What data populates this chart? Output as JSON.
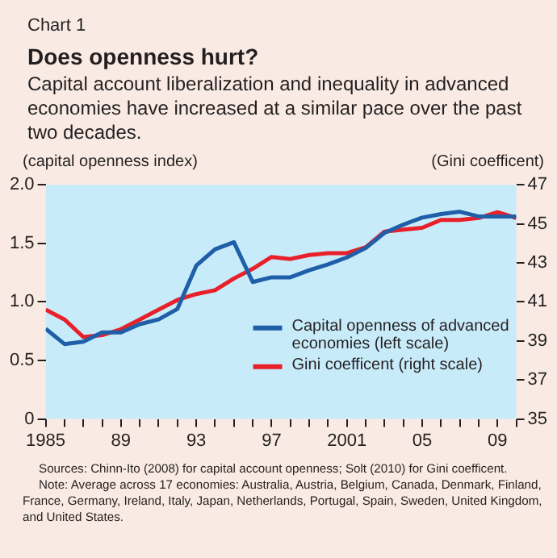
{
  "chart_data": {
    "type": "line",
    "subtitle": "Chart 1",
    "title": "Does openness hurt?",
    "annotations": [
      "Capital account liberalization and inequality in advanced economies have increased at a similar pace over the past two decades.",
      "Sources: Chinn-Ito (2008) for capital account openness; Solt (2010) for Gini coefficent.",
      "Note: Average across 17 economies: Australia, Austria, Belgium, Canada, Denmark, Finland, France, Germany, Ireland, Italy, Japan, Netherlands, Portugal, Spain, Sweden, United Kingdom, and United States."
    ],
    "ylabel": "(capital openness index)",
    "y2label": "(Gini coefficent)",
    "x": [
      1985,
      1986,
      1987,
      1988,
      1989,
      1990,
      1991,
      1992,
      1993,
      1994,
      1995,
      1996,
      1997,
      1998,
      1999,
      2000,
      2001,
      2002,
      2003,
      2004,
      2005,
      2006,
      2007,
      2008,
      2009,
      2010
    ],
    "series": [
      {
        "name": "Capital openness of advanced economies (left scale)",
        "color": "#1f5fa8",
        "values": [
          0.77,
          0.64,
          0.66,
          0.74,
          0.74,
          0.81,
          0.85,
          0.94,
          1.31,
          1.45,
          1.51,
          1.17,
          1.21,
          1.21,
          1.27,
          1.32,
          1.38,
          1.46,
          1.59,
          1.66,
          1.72,
          1.75,
          1.77,
          1.73,
          1.73,
          1.73
        ]
      },
      {
        "name": "Gini coefficent (right scale)",
        "color": "#e8202a",
        "axis": "y2",
        "values": [
          40.6,
          40.1,
          39.2,
          39.3,
          39.6,
          40.1,
          40.6,
          41.1,
          41.4,
          41.6,
          42.2,
          42.7,
          43.3,
          43.2,
          43.4,
          43.5,
          43.5,
          43.8,
          44.6,
          44.7,
          44.8,
          45.2,
          45.2,
          45.3,
          45.6,
          45.3
        ]
      }
    ],
    "xlim": [
      1985,
      2010
    ],
    "xticks": [
      1985,
      {
        "value": 1986,
        "label": null
      },
      {
        "value": 1987,
        "label": null
      },
      {
        "value": 1988,
        "label": null
      },
      {
        "value": 1989,
        "label": "89"
      },
      {
        "value": 1990,
        "label": null
      },
      {
        "value": 1991,
        "label": null
      },
      {
        "value": 1992,
        "label": null
      },
      {
        "value": 1993,
        "label": "93"
      },
      {
        "value": 1994,
        "label": null
      },
      {
        "value": 1995,
        "label": null
      },
      {
        "value": 1996,
        "label": null
      },
      {
        "value": 1997,
        "label": "97"
      },
      {
        "value": 1998,
        "label": null
      },
      {
        "value": 1999,
        "label": null
      },
      {
        "value": 2000,
        "label": null
      },
      2001,
      {
        "value": 2002,
        "label": null
      },
      {
        "value": 2003,
        "label": null
      },
      {
        "value": 2004,
        "label": null
      },
      {
        "value": 2005,
        "label": "05"
      },
      {
        "value": 2006,
        "label": null
      },
      {
        "value": 2007,
        "label": null
      },
      {
        "value": 2008,
        "label": null
      },
      {
        "value": 2009,
        "label": "09"
      },
      {
        "value": 2010,
        "label": null
      }
    ],
    "ylim": [
      0,
      2
    ],
    "yticks": [
      0,
      {
        "value": 0.5,
        "label": "0.5"
      },
      {
        "value": 1,
        "label": "1.0"
      },
      {
        "value": 1.5,
        "label": "1.5"
      },
      {
        "value": 2,
        "label": "2.0"
      }
    ],
    "y2lim": [
      35,
      47
    ],
    "y2ticks": [
      35,
      37,
      39,
      41,
      43,
      45,
      47
    ],
    "legend": "right",
    "grid": false,
    "marker": "none",
    "line_style": "solid"
  }
}
